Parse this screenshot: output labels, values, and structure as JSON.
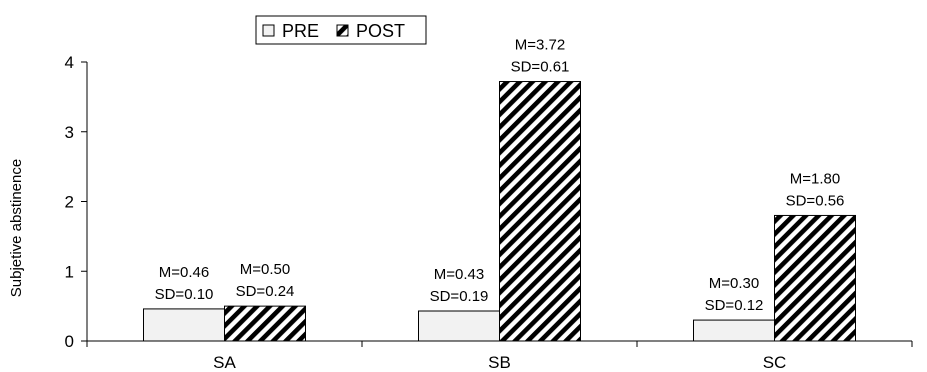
{
  "chart_data": {
    "type": "bar",
    "categories": [
      "SA",
      "SB",
      "SC"
    ],
    "series": [
      {
        "name": "PRE",
        "values": [
          0.46,
          0.43,
          0.3
        ],
        "labels": [
          [
            "M=0.46",
            "SD=0.10"
          ],
          [
            "M=0.43",
            "SD=0.19"
          ],
          [
            "M=0.30",
            "SD=0.12"
          ]
        ],
        "fill": "#f2f2f2",
        "pattern": "solid"
      },
      {
        "name": "POST",
        "values": [
          0.5,
          3.72,
          1.8
        ],
        "labels": [
          [
            "M=0.50",
            "SD=0.24"
          ],
          [
            "M=3.72",
            "SD=0.61"
          ],
          [
            "M=1.80",
            "SD=0.56"
          ]
        ],
        "fill": "#000000",
        "pattern": "diagonal-stripes"
      }
    ],
    "ylabel": "Subjetive abstinence",
    "xlabel": "",
    "ylim": [
      0,
      4
    ],
    "yticks": [
      0,
      1,
      2,
      3,
      4
    ],
    "grid": false,
    "legend_position": "top-center"
  }
}
